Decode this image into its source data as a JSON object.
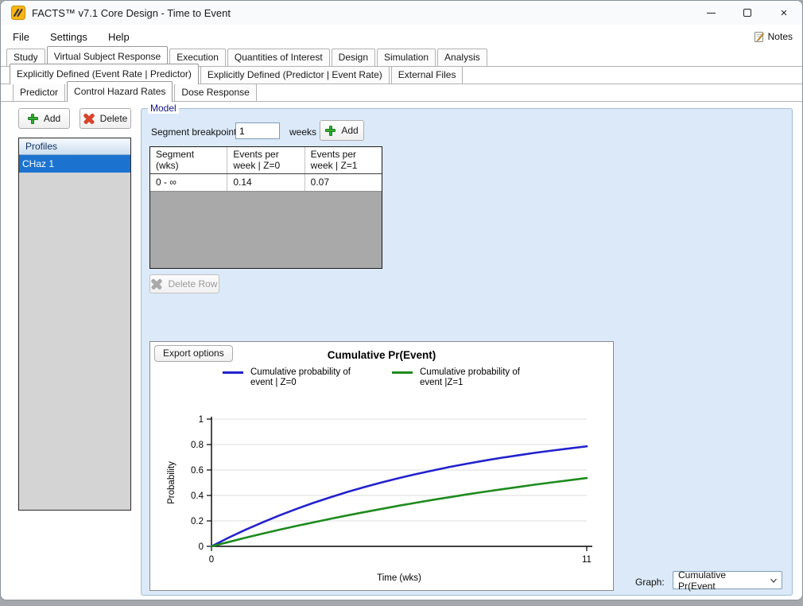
{
  "window": {
    "title": "FACTS™ v7.1 Core Design - Time to Event",
    "close_glyph": "×"
  },
  "menu": {
    "items": [
      "File",
      "Settings",
      "Help"
    ],
    "notes_label": "Notes"
  },
  "tabs_level1": {
    "items": [
      "Study",
      "Virtual Subject Response",
      "Execution",
      "Quantities of Interest",
      "Design",
      "Simulation",
      "Analysis"
    ],
    "selected": "Virtual Subject Response"
  },
  "tabs_level2": {
    "items": [
      "Explicitly Defined (Event Rate | Predictor)",
      "Explicitly Defined (Predictor | Event Rate)",
      "External Files"
    ],
    "selected": "Explicitly Defined (Event Rate | Predictor)"
  },
  "tabs_level3": {
    "items": [
      "Predictor",
      "Control Hazard Rates",
      "Dose Response"
    ],
    "selected": "Control Hazard Rates"
  },
  "profiles_panel": {
    "add_label": "Add",
    "delete_label": "Delete",
    "header": "Profiles",
    "items": [
      "CHaz 1"
    ],
    "selected": "CHaz 1"
  },
  "model": {
    "group_label": "Model",
    "segment_breakpoint_label": "Segment breakpoint:",
    "segment_breakpoint_value": "1",
    "units_label": "weeks",
    "add_label": "Add",
    "table": {
      "header": [
        {
          "l1": "Segment",
          "l2": "(wks)"
        },
        {
          "l1": "Events per",
          "l2": "week | Z=0"
        },
        {
          "l1": "Events per",
          "l2": "week | Z=1"
        }
      ],
      "rows": [
        [
          "0 - ∞",
          "0.14",
          "0.07"
        ]
      ]
    },
    "delete_row_label": "Delete Row",
    "delete_row_enabled": false
  },
  "chart_panel": {
    "export_button": "Export options",
    "graph_label": "Graph:",
    "graph_value": "Cumulative Pr(Event"
  },
  "chart_data": {
    "type": "line",
    "title": "Cumulative Pr(Event)",
    "xlabel": "Time (wks)",
    "ylabel": "Probability",
    "xlim": [
      0,
      11
    ],
    "ylim": [
      0,
      1
    ],
    "x_ticks": [
      0,
      11
    ],
    "y_ticks": [
      0,
      0.2,
      0.4,
      0.6,
      0.8,
      1
    ],
    "grid": "horizontal",
    "legend_position": "top",
    "x": [
      0,
      0.5,
      1,
      1.5,
      2,
      2.5,
      3,
      3.5,
      4,
      4.5,
      5,
      5.5,
      6,
      6.5,
      7,
      7.5,
      8,
      8.5,
      9,
      9.5,
      10,
      10.5,
      11
    ],
    "series": [
      {
        "name": "Cumulative probability of event | Z=0",
        "color": "#2222cc",
        "hazard_events_per_week": 0.14,
        "values": [
          0,
          0.068,
          0.131,
          0.189,
          0.244,
          0.295,
          0.343,
          0.387,
          0.429,
          0.467,
          0.503,
          0.537,
          0.568,
          0.597,
          0.625,
          0.65,
          0.674,
          0.696,
          0.716,
          0.736,
          0.753,
          0.77,
          0.786
        ]
      },
      {
        "name": "Cumulative probability of event |Z=1",
        "color": "#1e8b1e",
        "hazard_events_per_week": 0.07,
        "values": [
          0,
          0.034,
          0.068,
          0.1,
          0.131,
          0.161,
          0.189,
          0.217,
          0.244,
          0.27,
          0.295,
          0.32,
          0.343,
          0.366,
          0.387,
          0.409,
          0.429,
          0.448,
          0.467,
          0.486,
          0.503,
          0.52,
          0.537
        ]
      }
    ]
  }
}
